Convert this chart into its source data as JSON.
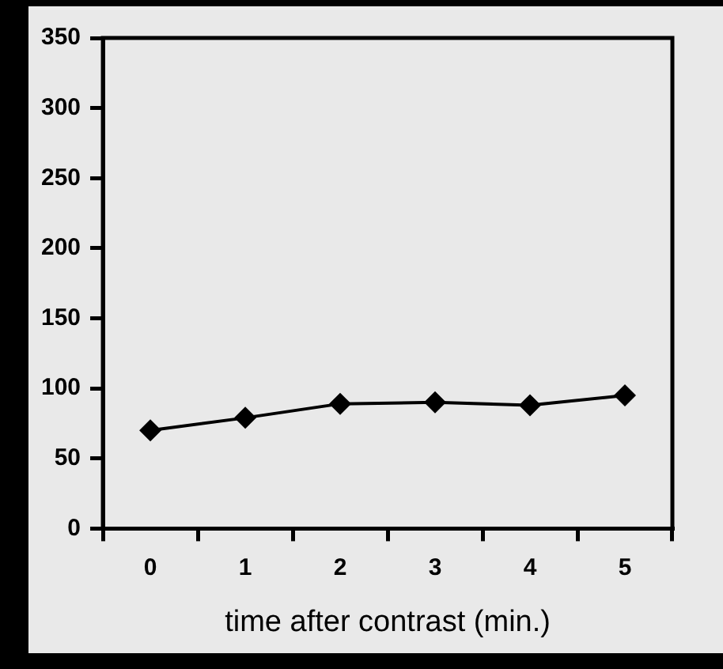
{
  "chart_data": {
    "type": "line",
    "xlabel": "time after contrast (min.)",
    "categories": [
      "0",
      "1",
      "2",
      "3",
      "4",
      "5"
    ],
    "series": [
      {
        "color": "#000000",
        "values": [
          70,
          79,
          89,
          90,
          88,
          95
        ]
      }
    ],
    "ylim": [
      0,
      350
    ],
    "yticks": [
      0,
      50,
      100,
      150,
      200,
      250,
      300,
      350
    ],
    "grid": false,
    "legend": false,
    "marker": "diamond",
    "line_style": "solid"
  }
}
